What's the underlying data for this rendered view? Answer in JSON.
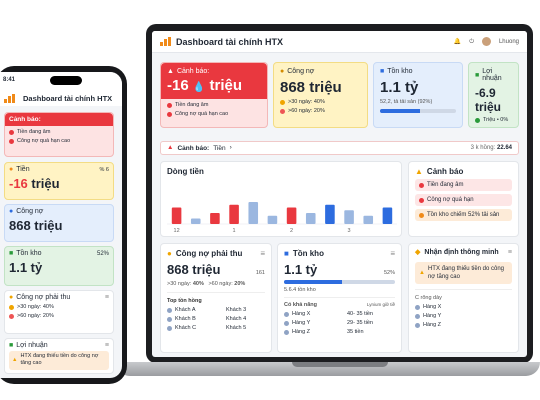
{
  "app": {
    "title": "Dashboard tài chính HTX",
    "user": "Lhuong"
  },
  "kpi": {
    "warning": {
      "label": "Cảnh báo:",
      "value": "-16",
      "unit": "triệu",
      "item1": "Tiền đang âm",
      "item2": "Công nợ quá hạn cao"
    },
    "debt": {
      "label": "Công nợ",
      "value": "868 triệu",
      "r1": ">30 ngày: 40%",
      "r2": ">60 ngày: 20%"
    },
    "stock": {
      "label": "Tồn kho",
      "value": "1.1 tỷ",
      "note": "52,2, tả tải sản (92%)",
      "fill": 0.52
    },
    "profit": {
      "label": "Lợi nhuận",
      "value": "-6.9 triệu",
      "r1": "Triệu • 0%"
    }
  },
  "alertbar": {
    "label": "Cảnh báo:",
    "item": "Tiền",
    "right_label": "3 k hồng:",
    "right_value": "22.64"
  },
  "cashflow": {
    "title": "Dòng tiền",
    "ticks": [
      "12",
      "1",
      "2",
      "3"
    ]
  },
  "alerts": {
    "title": "Cảnh báo",
    "items": [
      "Tiền đang âm",
      "Công nợ quá hạn",
      "Tồn kho chiếm 52% tải sản"
    ]
  },
  "receivable": {
    "title": "Công nợ phải thu",
    "value": "868 triệu",
    "badge": "161",
    "r1_label": ">30 ngày:",
    "r1": "40%",
    "r2_label": ">60 ngày:",
    "r2": "20%",
    "list_title": "Top tồn hồng",
    "rows": [
      [
        "Khách A",
        "Khách 3"
      ],
      [
        "Khách B",
        "Khách 4"
      ],
      [
        "Khách C",
        "Khách 5"
      ]
    ]
  },
  "inventory": {
    "title": "Tồn kho",
    "value": "1.1 tỷ",
    "pct": "52%",
    "note": "5.6.4 tồn kho",
    "fill": 0.52,
    "list_title": "Có khả năng",
    "list_right": "Lynium giữ tiề",
    "rows": [
      [
        "Hàng X",
        "40- 35 tiền"
      ],
      [
        "Hàng Y",
        "29- 35 tiền"
      ],
      [
        "Hàng Z",
        "35 tiền"
      ]
    ]
  },
  "insight": {
    "title": "Nhận định thông minh",
    "note": "HTX đang thiếu tiền do công nợ tăng cao",
    "list_title": "C rõng dày",
    "rows": [
      "Hàng X",
      "Hàng Y",
      "Hàng Z"
    ]
  },
  "phone": {
    "time": "8:41",
    "title": "Dashboard tài chính HTX",
    "warning_label": "Cảnh báo:",
    "warn1": "Tiền đang âm",
    "warn2": "Công nợ quá hạn cao",
    "cash_label": "Tiền",
    "cash_value": "-16",
    "cash_unit": "triệu",
    "cash_badge": "% 6",
    "debt_label": "Công nợ",
    "debt_value": "868 triệu",
    "stock_label": "Tồn kho",
    "stock_value": "1.1 tỷ",
    "stock_pct": "52%",
    "recv_label": "Công nợ phải thu",
    "recv_r1": ">30 ngày: 40%",
    "recv_r2": ">60 ngày: 20%",
    "profit_label": "Lợi nhuận",
    "profit_note": "HTX đang thiếu tiền do công nợ tăng cao"
  },
  "chart_data": {
    "type": "bar",
    "categories": [
      "12",
      "",
      "",
      "1",
      "",
      "",
      "2",
      "",
      "",
      "3",
      "",
      ""
    ],
    "series": [
      {
        "values": [
          6,
          2,
          4,
          7,
          8,
          3,
          6,
          4,
          7,
          5,
          3,
          6
        ]
      }
    ],
    "xlabel": "",
    "ylabel": ""
  }
}
